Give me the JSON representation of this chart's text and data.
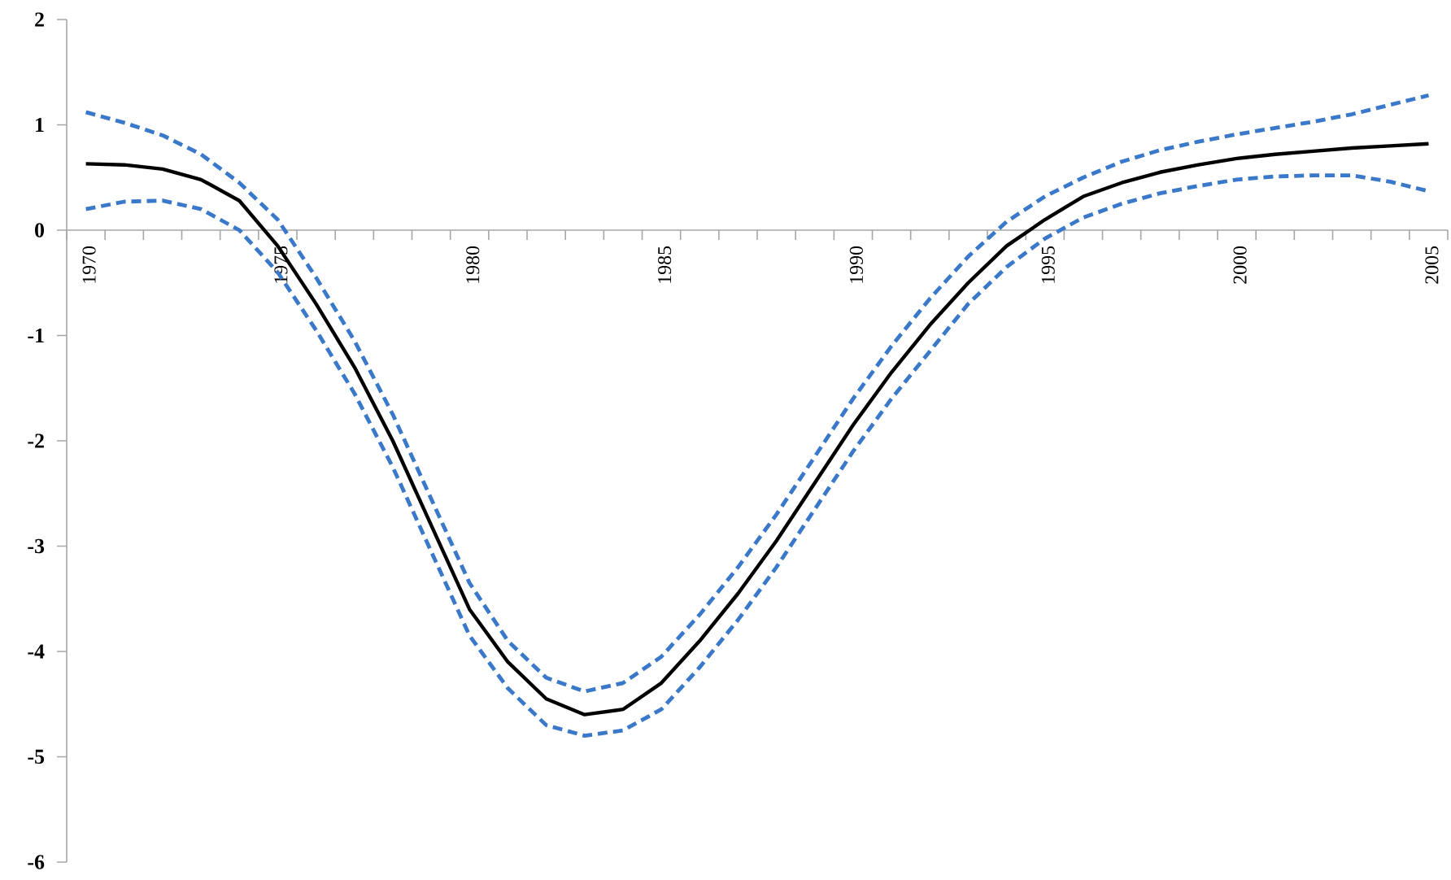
{
  "chart_data": {
    "type": "line",
    "x": [
      1970,
      1971,
      1972,
      1973,
      1974,
      1975,
      1976,
      1977,
      1978,
      1979,
      1980,
      1981,
      1982,
      1983,
      1984,
      1985,
      1986,
      1987,
      1988,
      1989,
      1990,
      1991,
      1992,
      1993,
      1994,
      1995,
      1996,
      1997,
      1998,
      1999,
      2000,
      2001,
      2002,
      2003,
      2004,
      2005
    ],
    "series": [
      {
        "color": "#000000",
        "line_style": "solid",
        "values": [
          0.63,
          0.62,
          0.58,
          0.48,
          0.28,
          -0.15,
          -0.7,
          -1.3,
          -2.0,
          -2.8,
          -3.6,
          -4.1,
          -4.45,
          -4.6,
          -4.55,
          -4.3,
          -3.9,
          -3.45,
          -2.95,
          -2.4,
          -1.85,
          -1.35,
          -0.9,
          -0.5,
          -0.15,
          0.1,
          0.32,
          0.45,
          0.55,
          0.62,
          0.68,
          0.72,
          0.75,
          0.78,
          0.8,
          0.82
        ]
      },
      {
        "color": "#3a78c9",
        "line_style": "dashed",
        "values": [
          1.12,
          1.02,
          0.9,
          0.72,
          0.45,
          0.1,
          -0.45,
          -1.05,
          -1.75,
          -2.55,
          -3.35,
          -3.9,
          -4.25,
          -4.38,
          -4.3,
          -4.05,
          -3.65,
          -3.2,
          -2.7,
          -2.15,
          -1.6,
          -1.1,
          -0.65,
          -0.25,
          0.08,
          0.32,
          0.5,
          0.65,
          0.76,
          0.84,
          0.91,
          0.97,
          1.03,
          1.1,
          1.19,
          1.28
        ]
      },
      {
        "color": "#3a78c9",
        "line_style": "dashed",
        "values": [
          0.2,
          0.27,
          0.28,
          0.2,
          0.0,
          -0.4,
          -0.95,
          -1.55,
          -2.25,
          -3.05,
          -3.85,
          -4.35,
          -4.7,
          -4.8,
          -4.75,
          -4.55,
          -4.15,
          -3.7,
          -3.2,
          -2.65,
          -2.1,
          -1.6,
          -1.15,
          -0.7,
          -0.35,
          -0.08,
          0.12,
          0.25,
          0.35,
          0.42,
          0.48,
          0.51,
          0.52,
          0.52,
          0.46,
          0.37
        ]
      }
    ],
    "xlim": [
      1969.5,
      2005.5
    ],
    "xticks": [
      1970,
      1975,
      1980,
      1985,
      1990,
      1995,
      2000,
      2005
    ],
    "ylim": [
      -6,
      2
    ],
    "yticks": [
      -6,
      -5,
      -4,
      -3,
      -2,
      -1,
      0,
      1,
      2
    ],
    "grid": false,
    "marker": "none"
  }
}
